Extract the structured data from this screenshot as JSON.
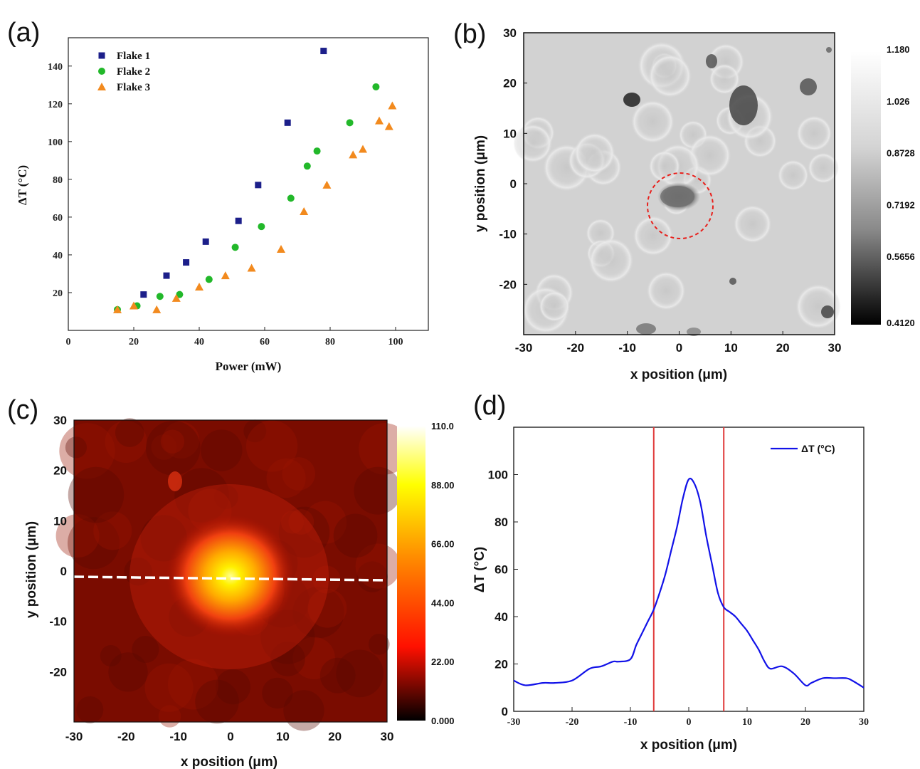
{
  "panels": {
    "a": "(a)",
    "b": "(b)",
    "c": "(c)",
    "d": "(d)"
  },
  "chart_data": [
    {
      "id": "a",
      "type": "scatter",
      "xlabel": "Power (mW)",
      "ylabel": "ΔT (°C)",
      "xlim": [
        0,
        110
      ],
      "ylim": [
        0,
        155
      ],
      "xticks": [
        "0",
        "20",
        "40",
        "60",
        "80",
        "100"
      ],
      "yticks": [
        "20",
        "40",
        "60",
        "80",
        "100",
        "120",
        "140"
      ],
      "legend_position": "top-left",
      "series": [
        {
          "name": "Flake 1",
          "marker": "square",
          "color": "#1c1f8a",
          "x": [
            23,
            30,
            36,
            42,
            52,
            58,
            67,
            78
          ],
          "y": [
            19,
            29,
            36,
            47,
            58,
            77,
            110,
            148
          ]
        },
        {
          "name": "Flake 2",
          "marker": "circle",
          "color": "#22b82a",
          "x": [
            15,
            21,
            28,
            34,
            43,
            51,
            59,
            68,
            73,
            76,
            86,
            94
          ],
          "y": [
            11,
            13,
            18,
            19,
            27,
            44,
            55,
            70,
            87,
            95,
            110,
            129
          ]
        },
        {
          "name": "Flake 3",
          "marker": "triangle",
          "color": "#f28a1e",
          "x": [
            15,
            20,
            27,
            33,
            40,
            48,
            56,
            65,
            72,
            79,
            87,
            90,
            95,
            98,
            99
          ],
          "y": [
            11,
            13,
            11,
            17,
            23,
            29,
            33,
            43,
            63,
            77,
            93,
            96,
            111,
            108,
            119
          ]
        }
      ]
    },
    {
      "id": "b",
      "type": "heatmap",
      "colormap": "grayscale",
      "xlabel": "x position (μm)",
      "ylabel": "y position (μm)",
      "xlim": [
        -30,
        30
      ],
      "ylim": [
        -30,
        30
      ],
      "xticks": [
        "-30",
        "-20",
        "-10",
        "0",
        "10",
        "20",
        "30"
      ],
      "yticks": [
        "-20",
        "-10",
        "0",
        "10",
        "20",
        "30"
      ],
      "colorbar_ticks": [
        "1.180",
        "1.026",
        "0.8728",
        "0.7192",
        "0.5656",
        "0.4120"
      ],
      "colorbar_range": [
        0.412,
        1.18
      ],
      "annotation": "dashed red circle around flake at (0, -3)"
    },
    {
      "id": "c",
      "type": "heatmap",
      "colormap": "hot",
      "xlabel": "x position (μm)",
      "ylabel": "y position (μm)",
      "xlim": [
        -30,
        30
      ],
      "ylim": [
        -30,
        30
      ],
      "xticks": [
        "-30",
        "-20",
        "-10",
        "0",
        "10",
        "20",
        "30"
      ],
      "yticks": [
        "-20",
        "-10",
        "0",
        "10",
        "20",
        "30"
      ],
      "colorbar_ticks": [
        "110.0",
        "88.00",
        "66.00",
        "44.00",
        "22.00",
        "0.000"
      ],
      "colorbar_range": [
        0,
        110
      ],
      "hotspot": {
        "x": 0,
        "y": -1
      },
      "annotation": "white dashed line at y ≈ -1"
    },
    {
      "id": "d",
      "type": "line",
      "xlabel": "x position (μm)",
      "ylabel": "ΔT (°C)",
      "xlim": [
        -30,
        30
      ],
      "ylim": [
        0,
        120
      ],
      "xticks": [
        "-30",
        "-20",
        "-10",
        "0",
        "10",
        "20",
        "30"
      ],
      "yticks": [
        "0",
        "20",
        "40",
        "60",
        "80",
        "100"
      ],
      "legend_position": "top-right",
      "vlines": [
        -6,
        6
      ],
      "series": [
        {
          "name": "ΔT (°C)",
          "color": "#1212e8",
          "x": [
            -30,
            -28,
            -25,
            -23,
            -20,
            -17,
            -15,
            -13,
            -12,
            -10,
            -9,
            -8,
            -7,
            -6,
            -5,
            -4,
            -3,
            -2,
            -1,
            0,
            1,
            2,
            3,
            4,
            5,
            6,
            7,
            8,
            9,
            10,
            11,
            12,
            13,
            14,
            16,
            18,
            20,
            21,
            23,
            25,
            27,
            28,
            30
          ],
          "y": [
            13,
            11,
            12,
            12,
            13,
            18,
            19,
            21,
            21,
            22,
            28,
            33,
            38,
            43,
            50,
            58,
            68,
            78,
            90,
            98,
            96,
            88,
            74,
            62,
            50,
            44,
            42,
            40,
            37,
            34,
            30,
            26,
            21,
            18,
            19,
            16,
            11,
            12,
            14,
            14,
            14,
            13,
            10
          ]
        }
      ]
    }
  ]
}
